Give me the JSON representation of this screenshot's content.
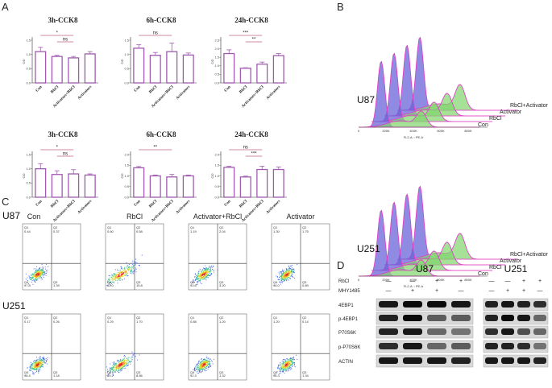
{
  "panels": {
    "A": "A",
    "B": "B",
    "C": "C",
    "D": "D"
  },
  "colors": {
    "bar": "#a05bb0",
    "sig": "#c0608a",
    "blueHist": "#6a63d8",
    "pinkHist": "#e040c8",
    "greenHist": "#7fd66c"
  },
  "chart_data": [
    {
      "type": "bar",
      "title": "3h-CCK8",
      "ylabel": "OD",
      "categories": [
        "Con",
        "RbCl",
        "Activators+RbCl",
        "Activators"
      ],
      "values": [
        1.1,
        0.93,
        0.88,
        1.02
      ],
      "errors": [
        0.15,
        0.04,
        0.05,
        0.08
      ],
      "ylim": [
        0,
        1.5
      ],
      "yticks": [
        "0.0",
        "0.5",
        "1.0",
        "1.5"
      ],
      "sig": [
        {
          "label": "*",
          "from": 0,
          "to": 2
        },
        {
          "label": "ns",
          "from": 1,
          "to": 2
        }
      ]
    },
    {
      "type": "bar",
      "title": "6h-CCK8",
      "ylabel": "OD",
      "categories": [
        "Con",
        "RbCl",
        "Activators+RbCl",
        "Activators"
      ],
      "values": [
        1.22,
        0.97,
        1.1,
        0.98
      ],
      "errors": [
        0.12,
        0.1,
        0.3,
        0.07
      ],
      "ylim": [
        0,
        1.5
      ],
      "yticks": [
        "0.0",
        "0.5",
        "1.0",
        "1.5"
      ],
      "sig": [
        {
          "label": "ns",
          "from": 0,
          "to": 2
        }
      ]
    },
    {
      "type": "bar",
      "title": "24h-CCK8",
      "ylabel": "OD",
      "categories": [
        "Con",
        "RbCl",
        "Activators+RbCl",
        "Activators"
      ],
      "values": [
        1.72,
        0.86,
        1.1,
        1.6
      ],
      "errors": [
        0.22,
        0.03,
        0.12,
        0.12
      ],
      "ylim": [
        0,
        2.5
      ],
      "yticks": [
        "0.0",
        "0.5",
        "1.0",
        "1.5",
        "2.0",
        "2.5"
      ],
      "sig": [
        {
          "label": "***",
          "from": 0,
          "to": 2
        },
        {
          "label": "**",
          "from": 1,
          "to": 2
        }
      ]
    },
    {
      "type": "bar",
      "title": "3h-CCK8",
      "ylabel": "OD",
      "categories": [
        "Con",
        "RbCl",
        "Activators+RbCl",
        "Activators"
      ],
      "values": [
        1.0,
        0.8,
        0.82,
        0.78
      ],
      "errors": [
        0.18,
        0.13,
        0.15,
        0.04
      ],
      "ylim": [
        0,
        1.5
      ],
      "yticks": [
        "0.0",
        "0.5",
        "1.0",
        "1.5"
      ],
      "sig": [
        {
          "label": "*",
          "from": 0,
          "to": 2
        },
        {
          "label": "ns",
          "from": 1,
          "to": 2
        }
      ]
    },
    {
      "type": "bar",
      "title": "6h-CCK8",
      "ylabel": "OD",
      "categories": [
        "Con",
        "RbCl",
        "Activators+RbCl",
        "Activators"
      ],
      "values": [
        1.38,
        1.0,
        0.95,
        1.0
      ],
      "errors": [
        0.06,
        0.04,
        0.12,
        0.04
      ],
      "ylim": [
        0,
        2.0
      ],
      "yticks": [
        "0.0",
        "0.5",
        "1.0",
        "1.5",
        "2.0"
      ],
      "sig": [
        {
          "label": "**",
          "from": 0,
          "to": 2
        }
      ]
    },
    {
      "type": "bar",
      "title": "24h-CCK8",
      "ylabel": "OD",
      "categories": [
        "Con",
        "RbCl",
        "Activators+RbCl",
        "Activators"
      ],
      "values": [
        1.4,
        0.95,
        1.3,
        1.3
      ],
      "errors": [
        0.05,
        0.04,
        0.15,
        0.12
      ],
      "ylim": [
        0,
        2.0
      ],
      "yticks": [
        "0.0",
        "0.5",
        "1.0",
        "1.5",
        "2.0"
      ],
      "sig": [
        {
          "label": "ns",
          "from": 0,
          "to": 2
        },
        {
          "label": "***",
          "from": 1,
          "to": 2
        }
      ]
    }
  ],
  "histograms": [
    {
      "cell": "U87",
      "xlabel": "FL2-A :: PE-A",
      "xticks": [
        "0",
        "200K",
        "400K",
        "600K",
        "800K"
      ],
      "legend": [
        "RbCl+Activator",
        "Activator",
        "RbCl",
        "Con"
      ]
    },
    {
      "cell": "U251",
      "xlabel": "FL2-A :: PE-A",
      "xticks": [
        "0",
        "200K",
        "400K",
        "600K",
        "800K"
      ],
      "legend": [
        "RbCl+Activator",
        "Activator",
        "RbCl",
        "Con"
      ]
    }
  ],
  "flow": {
    "rows": [
      {
        "cell": "U87",
        "quads": [
          [
            "0.44",
            "0.37",
            "1.39",
            "97.8"
          ],
          [
            "0.60",
            "0.58",
            "15.8",
            "83.0"
          ],
          [
            "1.19",
            "2.04",
            "3.20",
            "93.6"
          ],
          [
            "1.30",
            "1.75",
            "0.89",
            "96.0"
          ]
        ]
      },
      {
        "cell": "U251",
        "quads": [
          [
            "0.17",
            "0.26",
            "1.18",
            "98.4"
          ],
          [
            "0.29",
            "1.70",
            "8.86",
            "89.2"
          ],
          [
            "0.88",
            "1.20",
            "1.32",
            "92.3"
          ],
          [
            "1.20",
            "0.14",
            "1.34",
            "96.3"
          ]
        ]
      }
    ],
    "conditions": [
      "Con",
      "RbCl",
      "Activator+RbCl",
      "Activator"
    ],
    "quadrant_names": [
      "Q1",
      "Q2",
      "Q3",
      "Q4"
    ]
  },
  "western": {
    "groups": [
      "U87",
      "U251"
    ],
    "treat_labels": [
      "RbCl",
      "MHY1485"
    ],
    "rbcl": [
      "—",
      "—",
      "+",
      "+"
    ],
    "mhy": [
      "—",
      "+",
      "+",
      "—"
    ],
    "proteins": [
      "4EBP1",
      "p-4EBP1",
      "P70S6K",
      "p-P70S6K",
      "ACTIN"
    ],
    "intensity": {
      "U87": [
        [
          0.9,
          0.95,
          0.95,
          0.9
        ],
        [
          0.85,
          0.95,
          0.6,
          0.6
        ],
        [
          0.85,
          0.9,
          0.55,
          0.5
        ],
        [
          0.8,
          0.9,
          0.55,
          0.6
        ],
        [
          0.9,
          0.9,
          0.9,
          0.85
        ]
      ],
      "U251": [
        [
          0.85,
          0.9,
          0.85,
          0.8
        ],
        [
          0.85,
          0.95,
          0.9,
          0.55
        ],
        [
          0.8,
          0.9,
          0.65,
          0.55
        ],
        [
          0.85,
          0.85,
          0.8,
          0.5
        ],
        [
          0.9,
          0.9,
          0.9,
          0.85
        ]
      ]
    }
  }
}
